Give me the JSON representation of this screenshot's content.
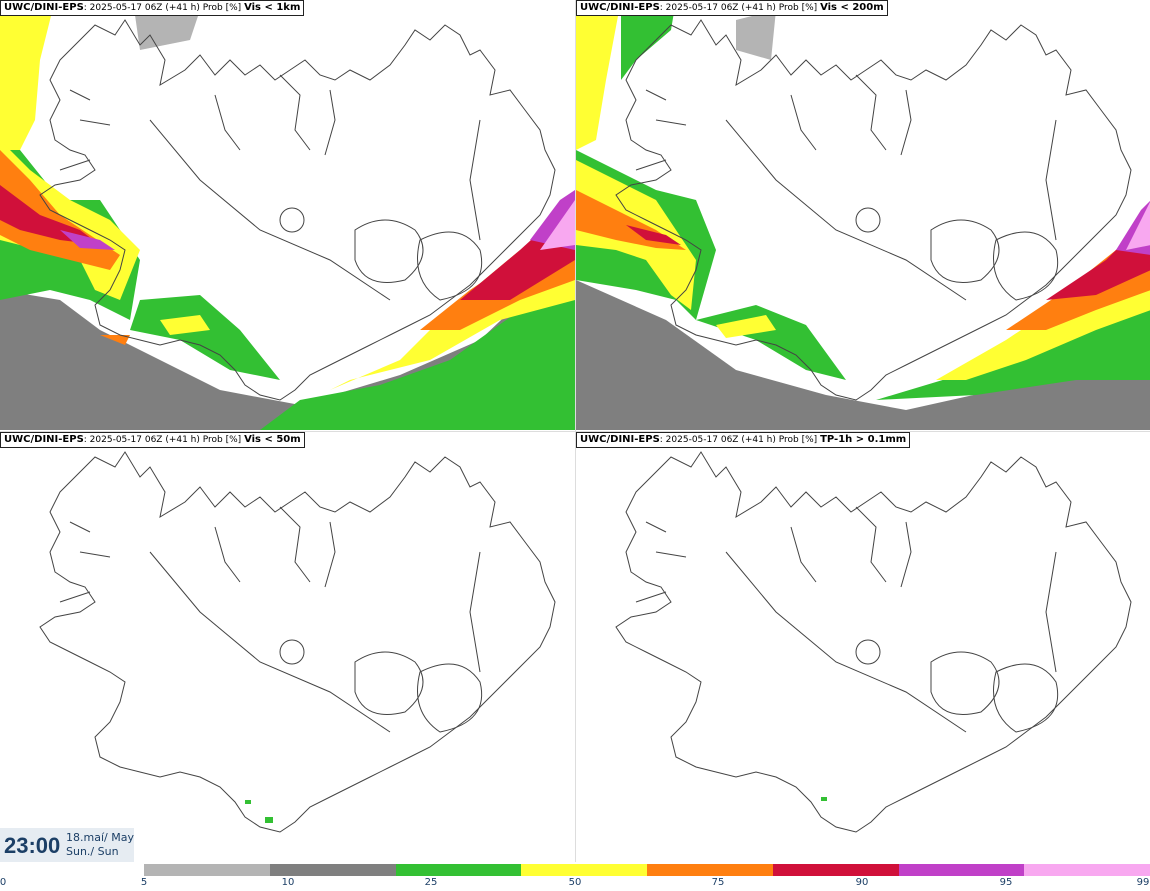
{
  "panels": [
    {
      "source": "UWC/DINI-EPS",
      "run": "2025-05-17 06Z (+41 h) Prob [%]",
      "threshold": "Vis < 1km"
    },
    {
      "source": "UWC/DINI-EPS",
      "run": "2025-05-17 06Z (+41 h) Prob [%]",
      "threshold": "Vis < 200m"
    },
    {
      "source": "UWC/DINI-EPS",
      "run": "2025-05-17 06Z (+41 h) Prob [%]",
      "threshold": "Vis < 50m"
    },
    {
      "source": "UWC/DINI-EPS",
      "run": "2025-05-17 06Z (+41 h) Prob [%]",
      "threshold": "TP-1h > 0.1mm"
    }
  ],
  "valid_time": {
    "time": "23:00",
    "date": "18.maí/ May",
    "day": "Sun./ Sun"
  },
  "legend": {
    "ticks": [
      "0",
      "5",
      "10",
      "25",
      "50",
      "75",
      "90",
      "95",
      "99"
    ],
    "colors": [
      "#b4b4b4",
      "#7f7f7f",
      "#33c033",
      "#ffff33",
      "#ff7f10",
      "#d0103a",
      "#c040c8",
      "#f8a8f0"
    ]
  }
}
